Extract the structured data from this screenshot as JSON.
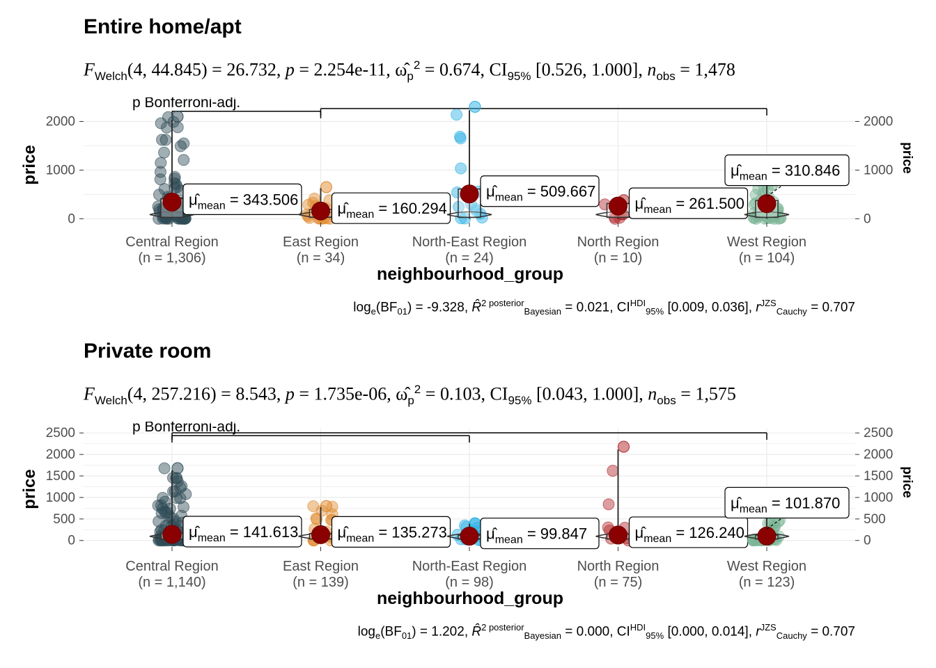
{
  "charts": [
    {
      "title": "Entire home/apt",
      "subtitle": {
        "test": "Welch",
        "df": "(4, 44.845)",
        "statistic": "26.732",
        "p": "2.254e-11",
        "effsize": "0.674",
        "ci": "[0.526, 1.000]",
        "n_obs": "1,478"
      },
      "caption": {
        "bf": "-9.328",
        "r2": "0.021",
        "ci_hdi": "[0.009, 0.036]",
        "r_cauchy": "0.707"
      },
      "pairwise_label": "p Bonferroni-adj."
    },
    {
      "title": "Private room",
      "subtitle": {
        "test": "Welch",
        "df": "(4, 257.216)",
        "statistic": "8.543",
        "p": "1.735e-06",
        "effsize": "0.103",
        "ci": "[0.043, 1.000]",
        "n_obs": "1,575"
      },
      "caption": {
        "bf": "1.202",
        "r2": "0.000",
        "ci_hdi": "[0.000, 0.014]",
        "r_cauchy": "0.707"
      },
      "pairwise_label": "p Bonferroni-adj."
    }
  ],
  "chart_data": [
    {
      "type": "scatter",
      "subtype": "violin-box-jitter (ggbetweenstats)",
      "title": "Entire home/apt",
      "xlabel": "neighbourhood_group",
      "ylabel": "price",
      "ylim": [
        -80,
        2350
      ],
      "yticks": [
        0,
        1000,
        2000
      ],
      "grid": true,
      "categories": [
        "Central Region",
        "East Region",
        "North-East Region",
        "North Region",
        "West Region"
      ],
      "n_labels": [
        "(n = 1,306)",
        "(n = 34)",
        "(n = 24)",
        "(n = 10)",
        "(n = 104)"
      ],
      "means": [
        343.506,
        160.294,
        509.667,
        261.5,
        310.846
      ],
      "mean_labels": [
        "343.506",
        "160.294",
        "509.667",
        "261.500",
        "310.846"
      ],
      "colors": [
        "#2F4B57",
        "#E08A2E",
        "#2AB0E3",
        "#B2272C",
        "#7BB394"
      ],
      "max_points": [
        2100,
        650,
        2300,
        380,
        700
      ],
      "pairwise_brackets": [
        [
          0,
          1
        ],
        [
          1,
          4
        ]
      ]
    },
    {
      "type": "scatter",
      "subtype": "violin-box-jitter (ggbetweenstats)",
      "title": "Private room",
      "xlabel": "neighbourhood_group",
      "ylabel": "price",
      "ylim": [
        -150,
        2600
      ],
      "yticks": [
        0,
        500,
        1000,
        1500,
        2000,
        2500
      ],
      "grid": true,
      "categories": [
        "Central Region",
        "East Region",
        "North-East Region",
        "North Region",
        "West Region"
      ],
      "n_labels": [
        "(n = 1,140)",
        "(n = 139)",
        "(n = 98)",
        "(n = 75)",
        "(n = 123)"
      ],
      "means": [
        141.613,
        135.273,
        99.847,
        126.24,
        101.87
      ],
      "mean_labels": [
        "141.613",
        "135.273",
        "99.847",
        "126.240",
        "101.870"
      ],
      "colors": [
        "#2F4B57",
        "#E08A2E",
        "#2AB0E3",
        "#B2272C",
        "#7BB394"
      ],
      "max_points": [
        1680,
        800,
        400,
        2180,
        600
      ],
      "pairwise_brackets": [
        [
          0,
          2
        ],
        [
          0,
          4
        ]
      ]
    }
  ]
}
